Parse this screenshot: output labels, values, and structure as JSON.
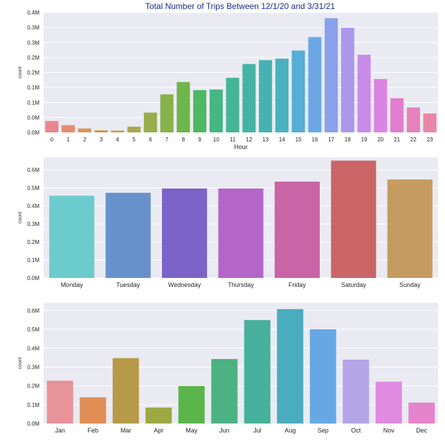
{
  "figure_title": "Total Number of Trips Between 12/1/20 and 3/31/21",
  "chart_data": [
    {
      "type": "bar",
      "name": "hourly",
      "title": "Total Number of Trips Between 12/1/20 and 3/31/21",
      "xlabel": "Hour",
      "ylabel": "count",
      "ylim": [
        0,
        0.4
      ],
      "yticks": [
        0,
        0.05,
        0.1,
        0.15,
        0.2,
        0.25,
        0.3,
        0.35,
        0.4
      ],
      "ytick_labels": [
        "0.0M",
        "0.0M",
        "0.1M",
        "0.1M",
        "0.2M",
        "0.2M",
        "0.3M",
        "0.3M",
        "0.4M"
      ],
      "grid": true,
      "categories": [
        "0",
        "1",
        "2",
        "3",
        "4",
        "5",
        "6",
        "7",
        "8",
        "9",
        "10",
        "11",
        "12",
        "13",
        "14",
        "15",
        "16",
        "17",
        "18",
        "19",
        "20",
        "21",
        "22",
        "23"
      ],
      "values": [
        0.038,
        0.024,
        0.013,
        0.007,
        0.006,
        0.019,
        0.066,
        0.127,
        0.168,
        0.141,
        0.143,
        0.182,
        0.228,
        0.241,
        0.246,
        0.273,
        0.318,
        0.381,
        0.349,
        0.259,
        0.178,
        0.114,
        0.083,
        0.063
      ],
      "colors": [
        "#e8878b",
        "#e28d70",
        "#d6965a",
        "#c69d4e",
        "#b7a24c",
        "#a7a84c",
        "#98ad4b",
        "#86b14b",
        "#6fb54e",
        "#4fb862",
        "#46b682",
        "#44b595",
        "#45b3a4",
        "#47b2b1",
        "#4bb1bf",
        "#55aed4",
        "#6aa8e4",
        "#89a2eb",
        "#a998ec",
        "#c88ce9",
        "#dc84e2",
        "#e27dcf",
        "#e681bc",
        "#e786a8"
      ]
    },
    {
      "type": "bar",
      "name": "weekday",
      "title": "",
      "xlabel": "",
      "ylabel": "count",
      "ylim": [
        0,
        0.67
      ],
      "yticks": [
        0,
        0.1,
        0.2,
        0.3,
        0.4,
        0.5,
        0.6
      ],
      "ytick_labels": [
        "0.0M",
        "0.1M",
        "0.2M",
        "0.3M",
        "0.4M",
        "0.5M",
        "0.6M"
      ],
      "grid": true,
      "categories": [
        "Monday",
        "Tuesday",
        "Wednesday",
        "Thursday",
        "Friday",
        "Saturday",
        "Sunday"
      ],
      "values": [
        0.457,
        0.473,
        0.497,
        0.497,
        0.535,
        0.652,
        0.547
      ],
      "colors": [
        "#6ccbcc",
        "#6791cb",
        "#7b63c8",
        "#b465c8",
        "#c964a6",
        "#c96567",
        "#c59b61"
      ]
    },
    {
      "type": "bar",
      "name": "monthly",
      "title": "",
      "xlabel": "",
      "ylabel": "count",
      "ylim": [
        0,
        0.64
      ],
      "yticks": [
        0,
        0.1,
        0.2,
        0.3,
        0.4,
        0.5,
        0.6
      ],
      "ytick_labels": [
        "0.0M",
        "0.1M",
        "0.2M",
        "0.3M",
        "0.4M",
        "0.5M",
        "0.6M"
      ],
      "grid": true,
      "categories": [
        "Jan",
        "Feb",
        "Mar",
        "Apr",
        "May",
        "Jun",
        "Jul",
        "Aug",
        "Sep",
        "Oct",
        "Nov",
        "Dec"
      ],
      "values": [
        0.227,
        0.139,
        0.347,
        0.085,
        0.199,
        0.342,
        0.549,
        0.607,
        0.5,
        0.339,
        0.222,
        0.111
      ],
      "colors": [
        "#e8939a",
        "#e08e55",
        "#b69a48",
        "#9ea842",
        "#5cb54a",
        "#4cb283",
        "#47b09c",
        "#4aacbf",
        "#66a8e4",
        "#b4a4e8",
        "#e08ae2",
        "#e583cc"
      ]
    }
  ]
}
